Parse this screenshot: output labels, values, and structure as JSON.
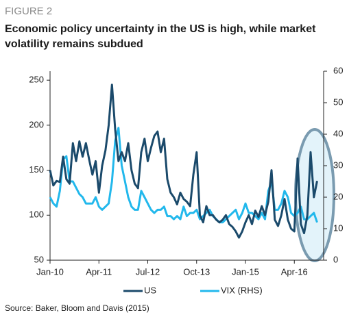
{
  "figure_label": "FIGURE 2",
  "source": "Source: Baker, Bloom and Davis (2015)",
  "chart_data": {
    "type": "line",
    "title": "Economic policy uncertainty in the US is high, while market volatility remains subdued",
    "categories": [
      "Jan-10",
      null,
      null,
      null,
      null,
      null,
      null,
      null,
      null,
      null,
      null,
      null,
      null,
      null,
      null,
      "Apr-11",
      null,
      null,
      null,
      null,
      null,
      null,
      null,
      null,
      null,
      null,
      null,
      null,
      null,
      null,
      "Jul-12",
      null,
      null,
      null,
      null,
      null,
      null,
      null,
      null,
      null,
      null,
      null,
      null,
      null,
      null,
      "Oct-13",
      null,
      null,
      null,
      null,
      null,
      null,
      null,
      null,
      null,
      null,
      null,
      null,
      null,
      null,
      "Jan-15",
      null,
      null,
      null,
      null,
      null,
      null,
      null,
      null,
      null,
      null,
      null,
      null,
      null,
      null,
      "Apr-16",
      null,
      null,
      null,
      null,
      null,
      null,
      null
    ],
    "series": [
      {
        "name": "US",
        "color": "#1b4a6b",
        "values": [
          150,
          133,
          138,
          137,
          165,
          140,
          135,
          180,
          160,
          182,
          165,
          180,
          162,
          145,
          160,
          125,
          155,
          172,
          200,
          245,
          195,
          160,
          170,
          160,
          180,
          150,
          135,
          130,
          170,
          185,
          160,
          175,
          188,
          193,
          170,
          185,
          140,
          125,
          120,
          112,
          125,
          118,
          115,
          110,
          145,
          170,
          100,
          92,
          110,
          100,
          100,
          95,
          92,
          95,
          100,
          90,
          87,
          82,
          75,
          82,
          92,
          100,
          90,
          105,
          98,
          110,
          100,
          115,
          150,
          95,
          88,
          100,
          118,
          95,
          85,
          82,
          163,
          90,
          80,
          100,
          170,
          120,
          138
        ]
      },
      {
        "name": "VIX (RHS)",
        "color": "#22b8ec",
        "axis": "y2",
        "values": [
          20,
          18,
          17,
          22,
          32,
          33,
          25,
          25,
          23,
          21,
          20,
          18,
          18,
          18,
          20,
          17,
          16,
          17,
          18,
          25,
          38,
          42,
          30,
          25,
          20,
          17,
          16,
          16,
          22,
          20,
          18,
          16,
          15,
          16,
          16,
          17,
          14,
          14,
          13,
          14,
          13,
          17,
          14,
          15,
          15,
          16,
          13,
          14,
          15,
          16,
          14,
          13,
          12,
          12,
          13,
          14,
          15,
          16,
          13,
          15,
          18,
          15,
          15,
          14,
          13,
          15,
          13,
          22,
          25,
          16,
          16,
          18,
          22,
          20,
          15,
          14,
          15,
          17,
          13,
          13,
          14,
          15,
          12
        ]
      }
    ],
    "ylim": [
      50,
      260
    ],
    "yticks": [
      50,
      100,
      150,
      200,
      250
    ],
    "y2lim": [
      0,
      60
    ],
    "y2ticks": [
      0,
      10,
      20,
      30,
      40,
      50,
      60
    ],
    "grid": false,
    "legend": "bottom"
  }
}
